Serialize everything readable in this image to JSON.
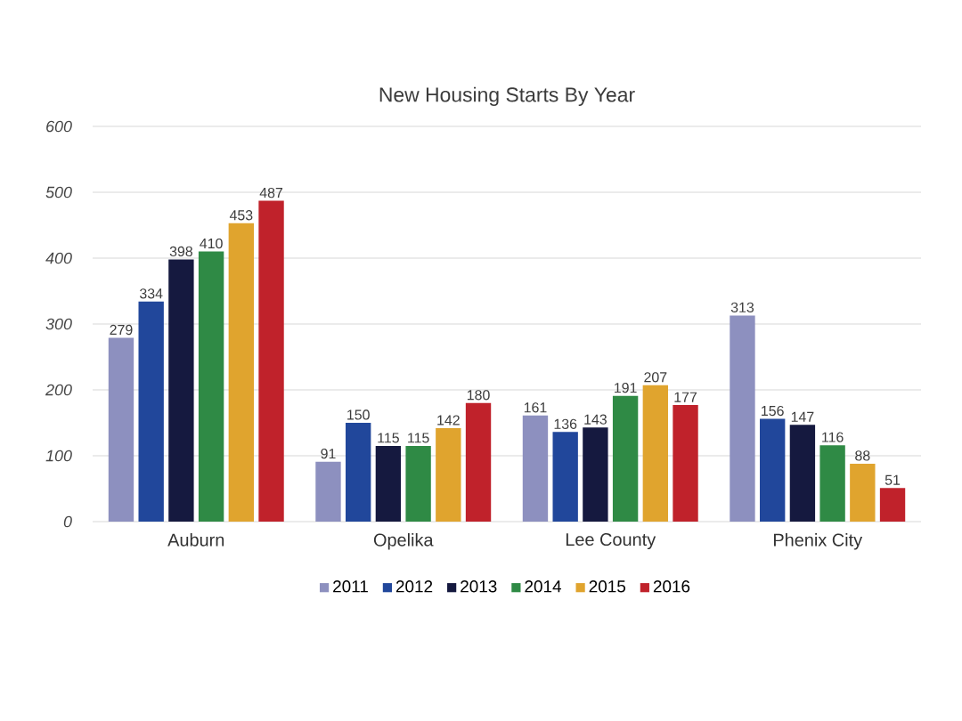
{
  "chart_data": {
    "type": "bar",
    "title": "New Housing Starts By Year",
    "categories": [
      "Auburn",
      "Opelika",
      "Lee County",
      "Phenix City"
    ],
    "series": [
      {
        "name": "2011",
        "color": "#8d90bf",
        "values": [
          279,
          91,
          161,
          313
        ]
      },
      {
        "name": "2012",
        "color": "#21479b",
        "values": [
          334,
          150,
          136,
          156
        ]
      },
      {
        "name": "2013",
        "color": "#15193f",
        "values": [
          398,
          115,
          143,
          147
        ]
      },
      {
        "name": "2014",
        "color": "#2f8a45",
        "values": [
          410,
          115,
          191,
          116
        ]
      },
      {
        "name": "2015",
        "color": "#e0a42e",
        "values": [
          453,
          142,
          207,
          88
        ]
      },
      {
        "name": "2016",
        "color": "#c0222b",
        "values": [
          487,
          180,
          177,
          51
        ]
      }
    ],
    "ylim": [
      0,
      600
    ],
    "yticks": [
      0,
      100,
      200,
      300,
      400,
      500,
      600
    ],
    "grid": "y",
    "legend": "bottom",
    "data_labels": true
  }
}
